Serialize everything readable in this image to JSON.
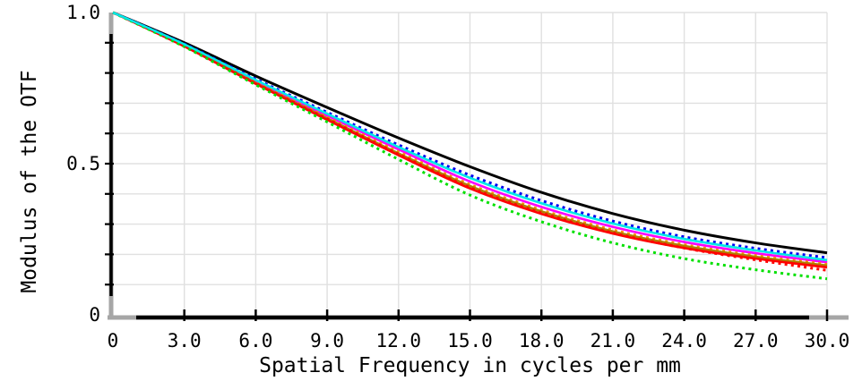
{
  "figure": {
    "background": "#ffffff",
    "x_axis_title": "Spatial Frequency in cycles per mm",
    "y_axis_title": "Modulus of the OTF"
  },
  "chart_data": {
    "type": "line",
    "title": "",
    "xlabel": "Spatial Frequency in cycles per mm",
    "ylabel": "Modulus of the OTF",
    "xlim": [
      0,
      30
    ],
    "ylim": [
      0,
      1
    ],
    "grid": {
      "on": true,
      "x_step": 3,
      "y_step": 0.1,
      "color": "#e0e0e0"
    },
    "legend": "none",
    "axis_color": "#000000",
    "axis_endcap_color": "#a6a6a6",
    "x_ticks": [
      0,
      3,
      6,
      9,
      12,
      15,
      18,
      21,
      24,
      27,
      30
    ],
    "x_tick_labels": [
      "0",
      "3.0",
      "6.0",
      "9.0",
      "12.0",
      "15.0",
      "18.0",
      "21.0",
      "24.0",
      "27.0",
      "30.0"
    ],
    "y_ticks": [
      0,
      0.5,
      1.0
    ],
    "y_tick_labels": [
      "0",
      "0.5",
      "1.0"
    ],
    "x": [
      0,
      3,
      6,
      9,
      12,
      15,
      18,
      21,
      24,
      27,
      30
    ],
    "series": [
      {
        "name": "black-solid-top-curve",
        "color": "#000000",
        "style": "solid",
        "width": 3,
        "values": [
          1.0,
          0.9,
          0.79,
          0.686,
          0.585,
          0.49,
          0.405,
          0.335,
          0.28,
          0.238,
          0.205
        ]
      },
      {
        "name": "blue-dashed-curve",
        "color": "#0000f0",
        "style": "dashed",
        "width": 3,
        "values": [
          1.0,
          0.896,
          0.78,
          0.67,
          0.562,
          0.462,
          0.378,
          0.31,
          0.258,
          0.22,
          0.189
        ]
      },
      {
        "name": "magenta-solid-curve",
        "color": "#fa00fa",
        "style": "solid",
        "width": 2.6,
        "values": [
          1.0,
          0.893,
          0.773,
          0.659,
          0.547,
          0.441,
          0.357,
          0.291,
          0.241,
          0.204,
          0.174
        ]
      },
      {
        "name": "orange-dashed-curve",
        "color": "#ff8c00",
        "style": "dashed",
        "width": 3,
        "values": [
          1.0,
          0.891,
          0.769,
          0.653,
          0.539,
          0.431,
          0.347,
          0.281,
          0.232,
          0.196,
          0.167
        ]
      },
      {
        "name": "gold-solid-curve",
        "color": "#af8000",
        "style": "solid",
        "width": 2.6,
        "values": [
          1.0,
          0.89,
          0.767,
          0.65,
          0.534,
          0.426,
          0.342,
          0.276,
          0.228,
          0.192,
          0.163
        ]
      },
      {
        "name": "red-solid-curve",
        "color": "#ff0000",
        "style": "solid",
        "width": 2.6,
        "values": [
          1.0,
          0.888,
          0.764,
          0.645,
          0.528,
          0.418,
          0.334,
          0.269,
          0.221,
          0.186,
          0.157
        ]
      },
      {
        "name": "red-dashed-curve",
        "color": "#ff0000",
        "style": "dashed",
        "width": 3,
        "values": [
          1.0,
          0.889,
          0.766,
          0.648,
          0.531,
          0.421,
          0.337,
          0.271,
          0.221,
          0.182,
          0.147
        ]
      },
      {
        "name": "green-dashed-curve",
        "color": "#00e000",
        "style": "dashed",
        "width": 3,
        "values": [
          1.0,
          0.887,
          0.761,
          0.638,
          0.514,
          0.396,
          0.308,
          0.238,
          0.186,
          0.149,
          0.119
        ]
      },
      {
        "name": "cyan-solid-curve",
        "color": "#00e8e8",
        "style": "solid",
        "width": 2.6,
        "values": [
          1.0,
          0.895,
          0.777,
          0.665,
          0.555,
          0.453,
          0.369,
          0.302,
          0.251,
          0.213,
          0.181
        ]
      }
    ]
  }
}
